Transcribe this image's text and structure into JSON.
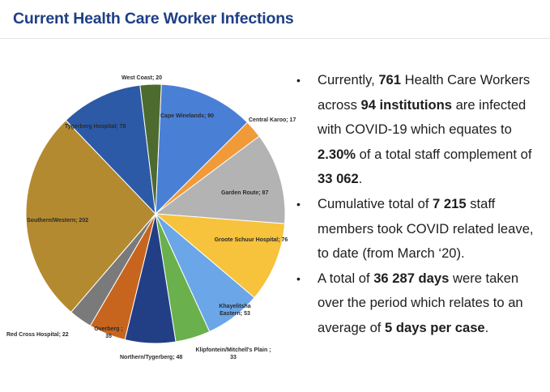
{
  "page": {
    "title": "Current Health Care Worker Infections"
  },
  "chart_data": {
    "type": "pie",
    "title": "",
    "slices": [
      {
        "label": "Cape Winelands; 90",
        "name": "Cape Winelands",
        "value": 90,
        "color": "#4a7fd6"
      },
      {
        "label": "Central Karoo; 17",
        "name": "Central Karoo",
        "value": 17,
        "color": "#f09a3a"
      },
      {
        "label": "Garden Route; 87",
        "name": "Garden Route",
        "value": 87,
        "color": "#b3b3b3"
      },
      {
        "label": "Groote Schuur Hospital; 76",
        "name": "Groote Schuur Hospital",
        "value": 76,
        "color": "#f7c23c"
      },
      {
        "label": "Khayelitsha Eastern; 53",
        "name": "Khayelitsha Eastern",
        "value": 53,
        "color": "#6aa6e8"
      },
      {
        "label": "Klipfontein/Mitchell's Plain ; 33",
        "name": "Klipfontein/Mitchell's Plain",
        "value": 33,
        "color": "#6ab04c"
      },
      {
        "label": "Northern/Tygerberg; 48",
        "name": "Northern/Tygerberg",
        "value": 48,
        "color": "#223f86"
      },
      {
        "label": "Overberg ; 35",
        "name": "Overberg",
        "value": 35,
        "color": "#c7651e"
      },
      {
        "label": "Red Cross Hospital; 22",
        "name": "Red Cross Hospital",
        "value": 22,
        "color": "#7a7a7a"
      },
      {
        "label": "Southern/Western; 202",
        "name": "Southern/Western",
        "value": 202,
        "color": "#b48a30"
      },
      {
        "label": "Tygerberg Hospital; 78",
        "name": "Tygerberg Hospital",
        "value": 78,
        "color": "#2d5aa6"
      },
      {
        "label": "West Coast; 20",
        "name": "West Coast",
        "value": 20,
        "color": "#4d6b2f"
      }
    ]
  },
  "bullets": [
    {
      "parts": [
        {
          "text": "Currently, ",
          "bold": false
        },
        {
          "text": "761",
          "bold": true
        },
        {
          "text": " Health Care Workers across ",
          "bold": false
        },
        {
          "text": "94 institutions",
          "bold": true
        },
        {
          "text": " are infected with COVID-19 which equates to ",
          "bold": false
        },
        {
          "text": "2.30%",
          "bold": true
        },
        {
          "text": " of a total staff complement of ",
          "bold": false
        },
        {
          "text": "33 062",
          "bold": true
        },
        {
          "text": ".",
          "bold": false
        }
      ]
    },
    {
      "parts": [
        {
          "text": "Cumulative total of ",
          "bold": false
        },
        {
          "text": "7 215",
          "bold": true
        },
        {
          "text": " staff members took COVID related leave, to date (from March ‘20).",
          "bold": false
        }
      ]
    },
    {
      "parts": [
        {
          "text": "A total of ",
          "bold": false
        },
        {
          "text": "36 287 days",
          "bold": true
        },
        {
          "text": " were taken over the period which relates to an average of ",
          "bold": false
        },
        {
          "text": "5 days per case",
          "bold": true
        },
        {
          "text": ".",
          "bold": false
        }
      ]
    }
  ]
}
